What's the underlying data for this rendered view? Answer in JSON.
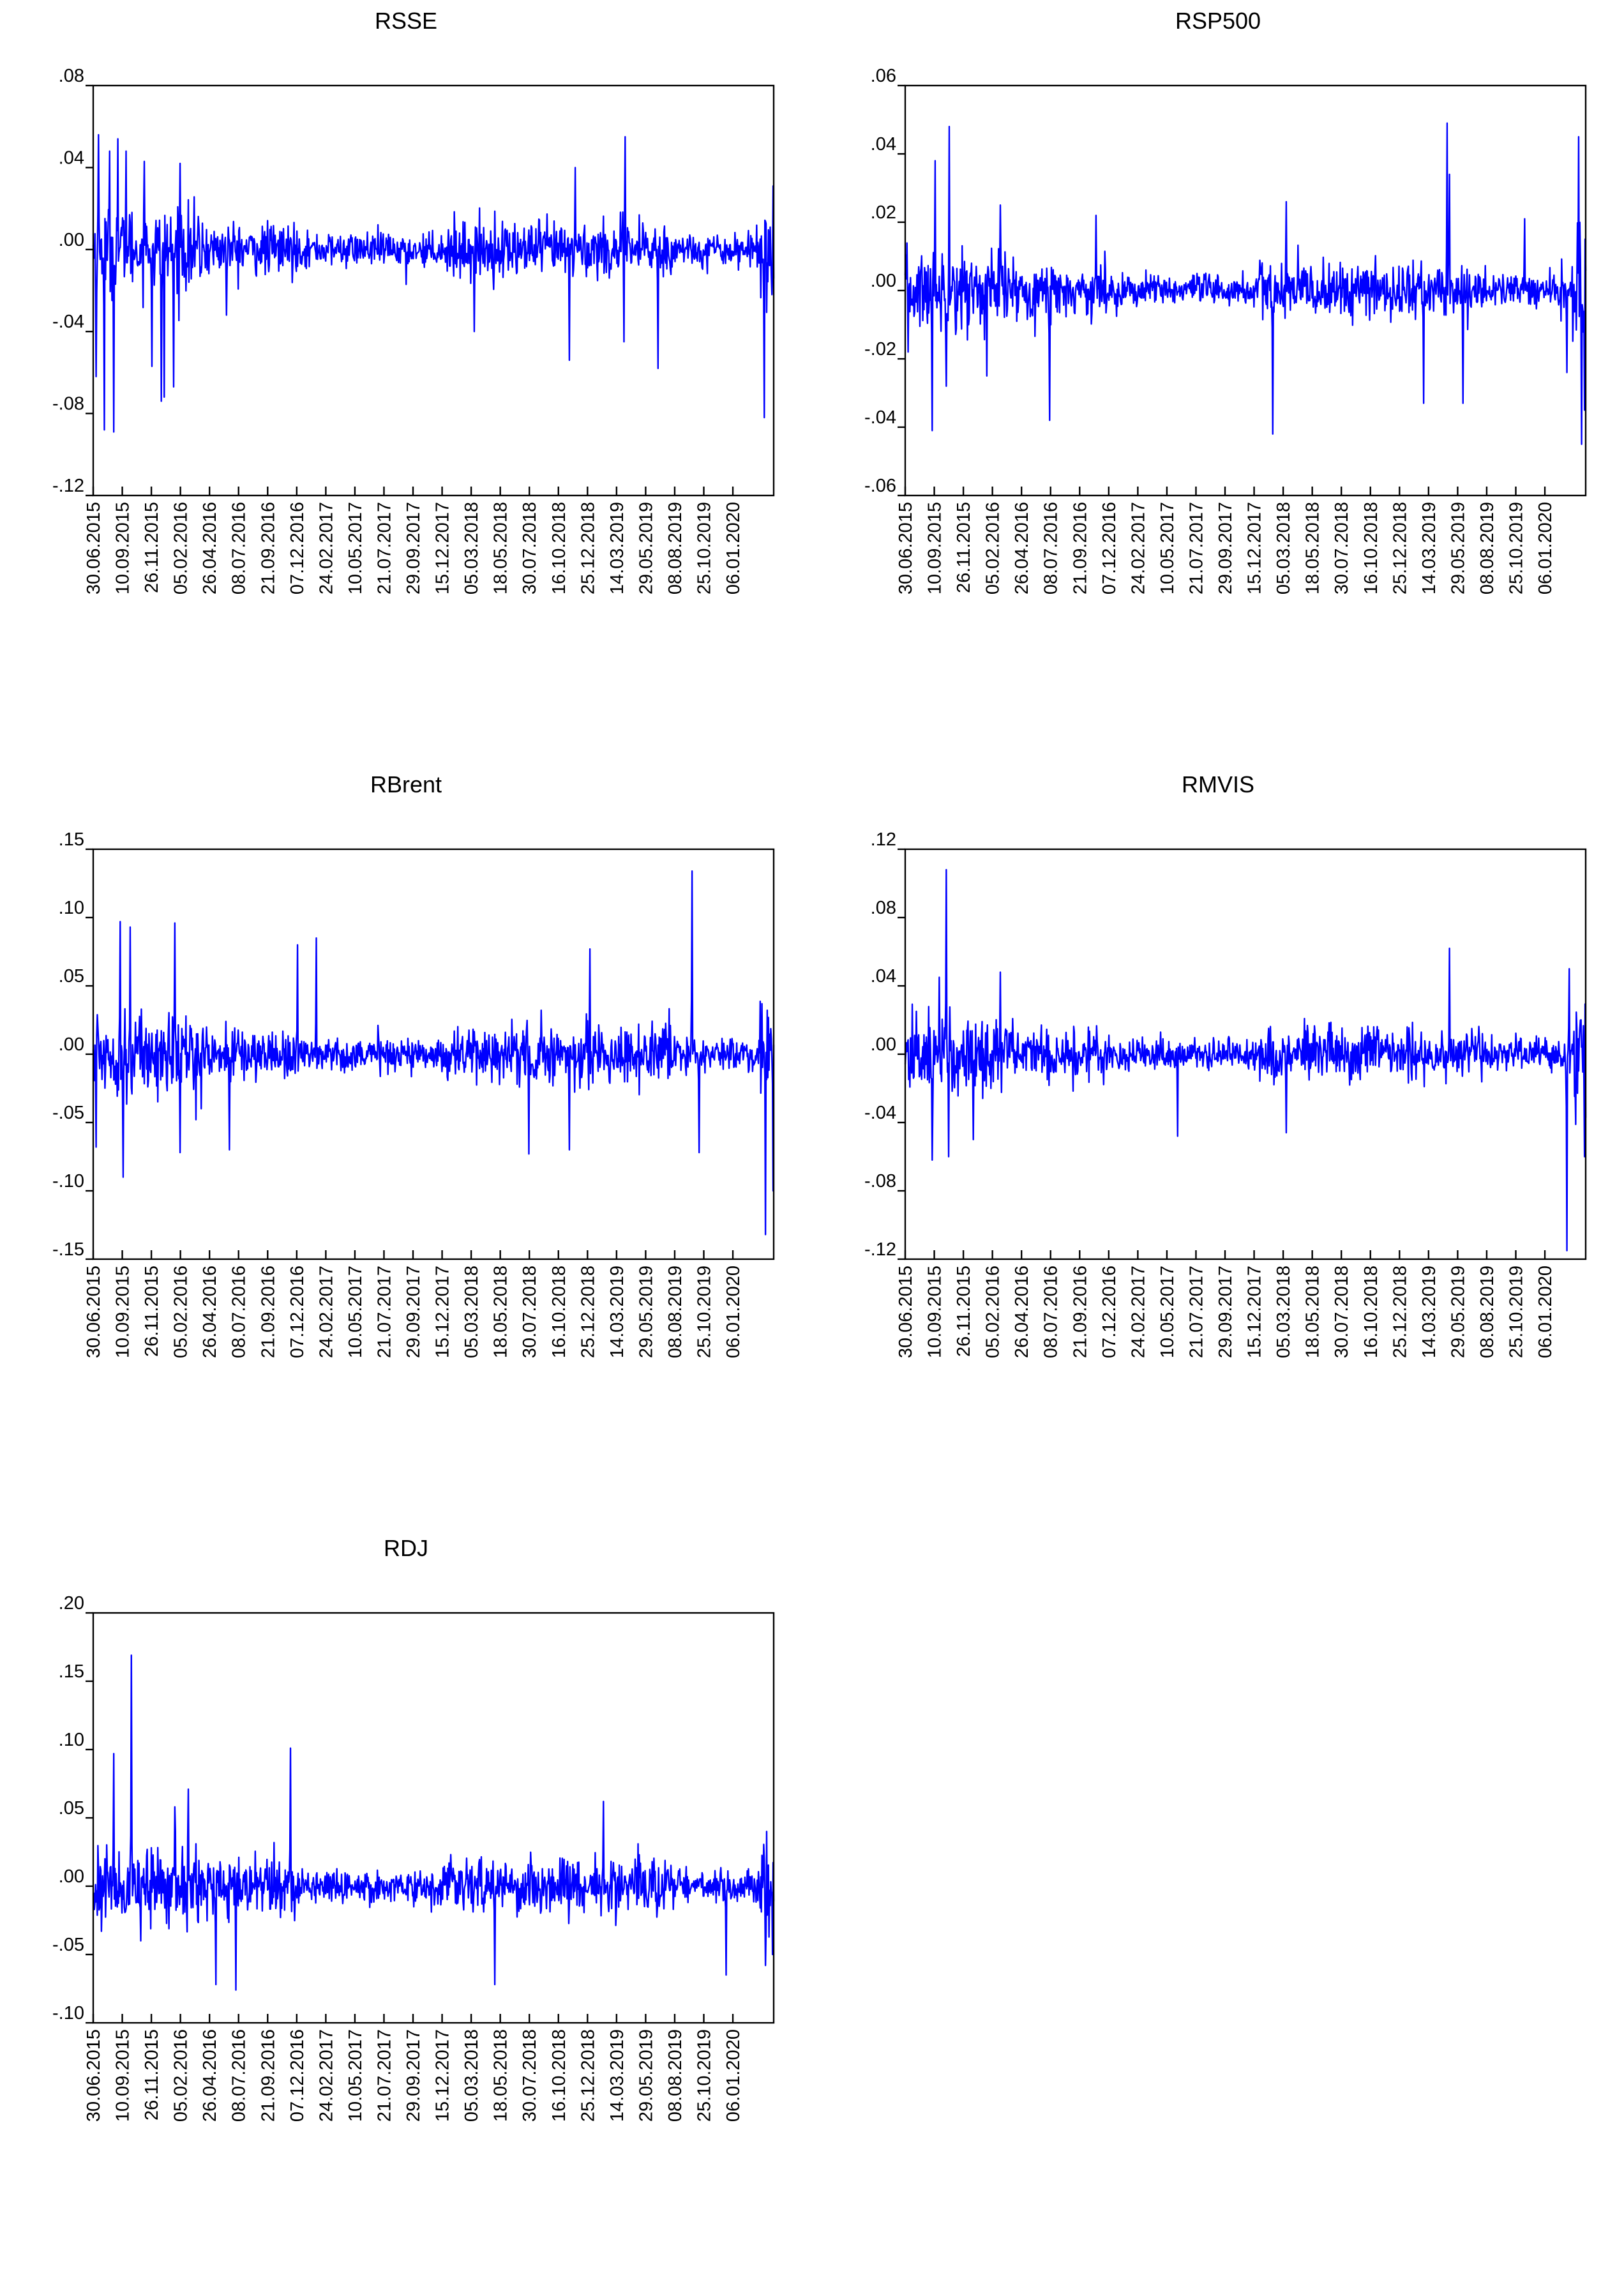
{
  "chart_data": [
    {
      "id": "rsse",
      "type": "line",
      "title": "RSSE",
      "xlabel": "",
      "ylabel": "",
      "ylim": [
        -0.12,
        0.08
      ],
      "yticks": [
        0.08,
        0.04,
        0.0,
        -0.04,
        -0.08,
        -0.12
      ],
      "ytick_labels": [
        ".08",
        ".04",
        ".00",
        "-.04",
        "-.08",
        "-.12"
      ],
      "x_tick_labels": [
        "30.06.2015",
        "10.09.2015",
        "26.11.2015",
        "05.02.2016",
        "26.04.2016",
        "08.07.2016",
        "21.09.2016",
        "07.12.2016",
        "24.02.2017",
        "10.05.2017",
        "21.07.2017",
        "29.09.2017",
        "15.12.2017",
        "05.03.2018",
        "18.05.2018",
        "30.07.2018",
        "16.10.2018",
        "25.12.2018",
        "14.03.2019",
        "29.05.2019",
        "08.08.2019",
        "25.10.2019",
        "06.01.2020"
      ],
      "n_obs": 1160,
      "grid": false,
      "line_color": "#0000ff",
      "spikes": [
        {
          "x": 0.004,
          "y": -0.062
        },
        {
          "x": 0.008,
          "y": 0.056
        },
        {
          "x": 0.016,
          "y": -0.088
        },
        {
          "x": 0.024,
          "y": 0.048
        },
        {
          "x": 0.03,
          "y": -0.089
        },
        {
          "x": 0.036,
          "y": 0.054
        },
        {
          "x": 0.048,
          "y": 0.048
        },
        {
          "x": 0.075,
          "y": 0.043
        },
        {
          "x": 0.086,
          "y": -0.057
        },
        {
          "x": 0.1,
          "y": -0.074
        },
        {
          "x": 0.104,
          "y": -0.072
        },
        {
          "x": 0.118,
          "y": -0.067
        },
        {
          "x": 0.128,
          "y": 0.042
        },
        {
          "x": 0.196,
          "y": -0.032
        },
        {
          "x": 0.46,
          "y": -0.017
        },
        {
          "x": 0.56,
          "y": -0.04
        },
        {
          "x": 0.7,
          "y": -0.054
        },
        {
          "x": 0.708,
          "y": 0.04
        },
        {
          "x": 0.78,
          "y": -0.045
        },
        {
          "x": 0.782,
          "y": 0.055
        },
        {
          "x": 0.83,
          "y": -0.058
        },
        {
          "x": 0.986,
          "y": -0.082
        },
        {
          "x": 0.998,
          "y": -0.04
        },
        {
          "x": 0.999,
          "y": 0.031
        }
      ]
    },
    {
      "id": "rsp500",
      "type": "line",
      "title": "RSP500",
      "xlabel": "",
      "ylabel": "",
      "ylim": [
        -0.06,
        0.06
      ],
      "yticks": [
        0.06,
        0.04,
        0.02,
        0.0,
        -0.02,
        -0.04,
        -0.06
      ],
      "ytick_labels": [
        ".06",
        ".04",
        ".02",
        ".00",
        "-.02",
        "-.04",
        "-.06"
      ],
      "x_tick_labels": [
        "30.06.2015",
        "10.09.2015",
        "26.11.2015",
        "05.02.2016",
        "26.04.2016",
        "08.07.2016",
        "21.09.2016",
        "07.12.2016",
        "24.02.2017",
        "10.05.2017",
        "21.07.2017",
        "29.09.2017",
        "15.12.2017",
        "05.03.2018",
        "18.05.2018",
        "30.07.2018",
        "16.10.2018",
        "25.12.2018",
        "14.03.2019",
        "29.05.2019",
        "08.08.2019",
        "25.10.2019",
        "06.01.2020"
      ],
      "n_obs": 1160,
      "grid": false,
      "line_color": "#0000ff",
      "spikes": [
        {
          "x": 0.004,
          "y": -0.018
        },
        {
          "x": 0.04,
          "y": -0.041
        },
        {
          "x": 0.044,
          "y": 0.038
        },
        {
          "x": 0.06,
          "y": -0.028
        },
        {
          "x": 0.065,
          "y": 0.048
        },
        {
          "x": 0.12,
          "y": -0.025
        },
        {
          "x": 0.14,
          "y": 0.025
        },
        {
          "x": 0.212,
          "y": -0.038
        },
        {
          "x": 0.28,
          "y": 0.022
        },
        {
          "x": 0.54,
          "y": -0.042
        },
        {
          "x": 0.56,
          "y": 0.026
        },
        {
          "x": 0.762,
          "y": -0.033
        },
        {
          "x": 0.796,
          "y": 0.049
        },
        {
          "x": 0.8,
          "y": 0.034
        },
        {
          "x": 0.82,
          "y": -0.033
        },
        {
          "x": 0.91,
          "y": 0.021
        },
        {
          "x": 0.972,
          "y": -0.024
        },
        {
          "x": 0.99,
          "y": 0.045
        },
        {
          "x": 0.994,
          "y": -0.045
        },
        {
          "x": 0.998,
          "y": -0.035
        }
      ]
    },
    {
      "id": "rbrent",
      "type": "line",
      "title": "RBrent",
      "xlabel": "",
      "ylabel": "",
      "ylim": [
        -0.15,
        0.15
      ],
      "yticks": [
        0.15,
        0.1,
        0.05,
        0.0,
        -0.05,
        -0.1,
        -0.15
      ],
      "ytick_labels": [
        ".15",
        ".10",
        ".05",
        ".00",
        "-.05",
        "-.10",
        "-.15"
      ],
      "x_tick_labels": [
        "30.06.2015",
        "10.09.2015",
        "26.11.2015",
        "05.02.2016",
        "26.04.2016",
        "08.07.2016",
        "21.09.2016",
        "07.12.2016",
        "24.02.2017",
        "10.05.2017",
        "21.07.2017",
        "29.09.2017",
        "15.12.2017",
        "05.03.2018",
        "18.05.2018",
        "30.07.2018",
        "16.10.2018",
        "25.12.2018",
        "14.03.2019",
        "29.05.2019",
        "08.08.2019",
        "25.10.2019",
        "06.01.2020"
      ],
      "n_obs": 1160,
      "grid": false,
      "line_color": "#0000ff",
      "spikes": [
        {
          "x": 0.004,
          "y": -0.068
        },
        {
          "x": 0.04,
          "y": 0.097
        },
        {
          "x": 0.044,
          "y": -0.09
        },
        {
          "x": 0.054,
          "y": 0.093
        },
        {
          "x": 0.12,
          "y": 0.096
        },
        {
          "x": 0.128,
          "y": -0.072
        },
        {
          "x": 0.2,
          "y": -0.07
        },
        {
          "x": 0.3,
          "y": 0.08
        },
        {
          "x": 0.328,
          "y": 0.085
        },
        {
          "x": 0.64,
          "y": -0.073
        },
        {
          "x": 0.7,
          "y": -0.07
        },
        {
          "x": 0.73,
          "y": 0.077
        },
        {
          "x": 0.88,
          "y": 0.134
        },
        {
          "x": 0.89,
          "y": -0.072
        },
        {
          "x": 0.988,
          "y": -0.132
        },
        {
          "x": 0.999,
          "y": -0.1
        }
      ]
    },
    {
      "id": "rmvis",
      "type": "line",
      "title": "RMVIS",
      "xlabel": "",
      "ylabel": "",
      "ylim": [
        -0.12,
        0.12
      ],
      "yticks": [
        0.12,
        0.08,
        0.04,
        0.0,
        -0.04,
        -0.08,
        -0.12
      ],
      "ytick_labels": [
        ".12",
        ".08",
        ".04",
        ".00",
        "-.04",
        "-.08",
        "-.12"
      ],
      "x_tick_labels": [
        "30.06.2015",
        "10.09.2015",
        "26.11.2015",
        "05.02.2016",
        "26.04.2016",
        "08.07.2016",
        "21.09.2016",
        "07.12.2016",
        "24.02.2017",
        "10.05.2017",
        "21.07.2017",
        "29.09.2017",
        "15.12.2017",
        "05.03.2018",
        "18.05.2018",
        "30.07.2018",
        "16.10.2018",
        "25.12.2018",
        "14.03.2019",
        "29.05.2019",
        "08.08.2019",
        "25.10.2019",
        "06.01.2020"
      ],
      "n_obs": 1160,
      "grid": false,
      "line_color": "#0000ff",
      "spikes": [
        {
          "x": 0.04,
          "y": -0.062
        },
        {
          "x": 0.05,
          "y": 0.045
        },
        {
          "x": 0.06,
          "y": 0.108
        },
        {
          "x": 0.064,
          "y": -0.06
        },
        {
          "x": 0.1,
          "y": -0.05
        },
        {
          "x": 0.14,
          "y": 0.048
        },
        {
          "x": 0.4,
          "y": -0.048
        },
        {
          "x": 0.56,
          "y": -0.046
        },
        {
          "x": 0.8,
          "y": 0.062
        },
        {
          "x": 0.972,
          "y": -0.115
        },
        {
          "x": 0.976,
          "y": 0.05
        },
        {
          "x": 0.998,
          "y": -0.06
        }
      ]
    },
    {
      "id": "rdj",
      "type": "line",
      "title": "RDJ",
      "xlabel": "",
      "ylabel": "",
      "ylim": [
        -0.1,
        0.2
      ],
      "yticks": [
        0.2,
        0.15,
        0.1,
        0.05,
        0.0,
        -0.05,
        -0.1
      ],
      "ytick_labels": [
        ".20",
        ".15",
        ".10",
        ".05",
        ".00",
        "-.05",
        "-.10"
      ],
      "x_tick_labels": [
        "30.06.2015",
        "10.09.2015",
        "26.11.2015",
        "05.02.2016",
        "26.04.2016",
        "08.07.2016",
        "21.09.2016",
        "07.12.2016",
        "24.02.2017",
        "10.05.2017",
        "21.07.2017",
        "29.09.2017",
        "15.12.2017",
        "05.03.2018",
        "18.05.2018",
        "30.07.2018",
        "16.10.2018",
        "25.12.2018",
        "14.03.2019",
        "29.05.2019",
        "08.08.2019",
        "25.10.2019",
        "06.01.2020"
      ],
      "n_obs": 1160,
      "grid": false,
      "line_color": "#0000ff",
      "spikes": [
        {
          "x": 0.03,
          "y": 0.097
        },
        {
          "x": 0.056,
          "y": 0.169
        },
        {
          "x": 0.07,
          "y": -0.04
        },
        {
          "x": 0.12,
          "y": 0.058
        },
        {
          "x": 0.14,
          "y": 0.071
        },
        {
          "x": 0.18,
          "y": -0.072
        },
        {
          "x": 0.21,
          "y": -0.076
        },
        {
          "x": 0.29,
          "y": 0.101
        },
        {
          "x": 0.59,
          "y": -0.072
        },
        {
          "x": 0.75,
          "y": 0.062
        },
        {
          "x": 0.93,
          "y": -0.065
        },
        {
          "x": 0.988,
          "y": -0.058
        },
        {
          "x": 0.998,
          "y": -0.05
        }
      ]
    }
  ]
}
